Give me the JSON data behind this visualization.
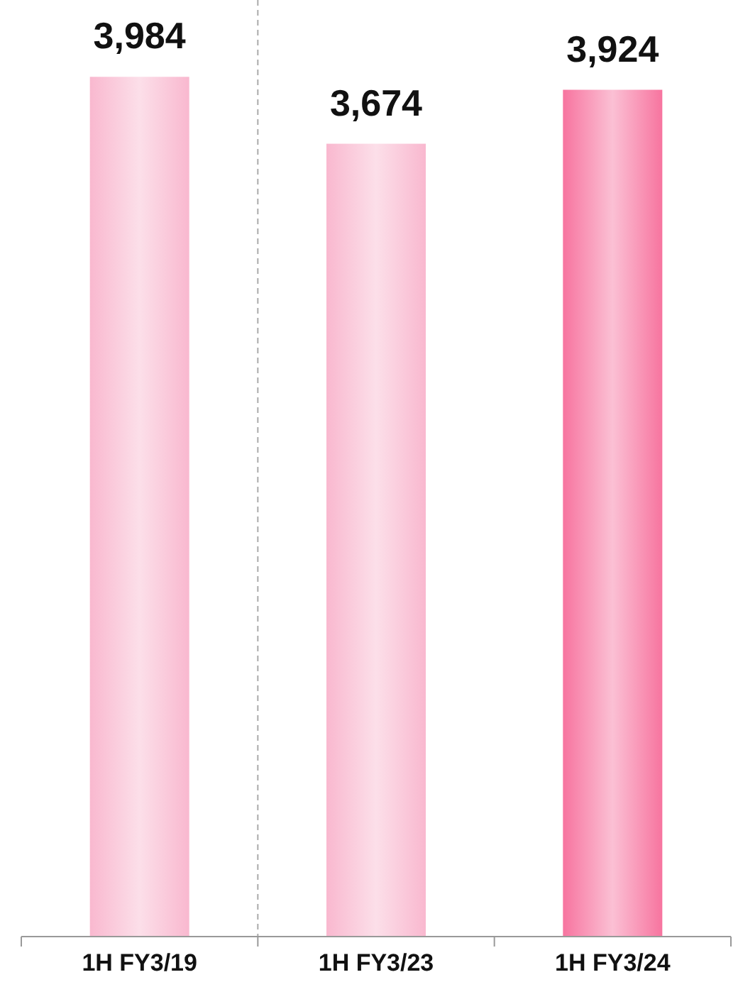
{
  "chart_data": {
    "type": "bar",
    "categories": [
      "1H FY3/19",
      "1H FY3/23",
      "1H FY3/24"
    ],
    "values": [
      3984,
      3674,
      3924
    ],
    "colors": [
      "#f9b8cf",
      "#f9b8cf",
      "#f7749f"
    ],
    "value_labels": [
      "3,984",
      "3,674",
      "3,924"
    ],
    "ylim": [
      0,
      4340
    ],
    "tick_labels": "x"
  }
}
